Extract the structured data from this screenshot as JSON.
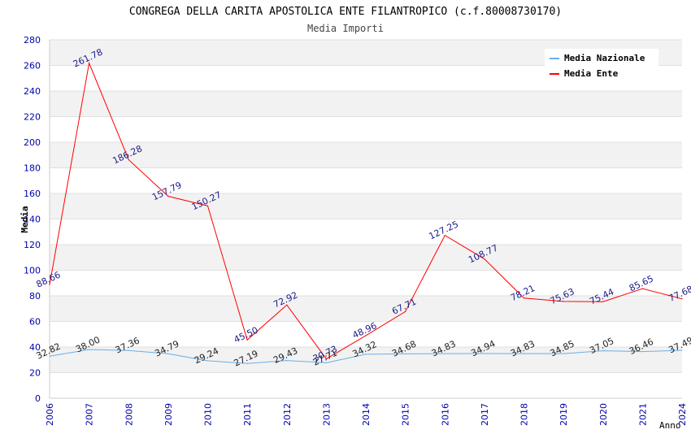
{
  "chart_data": {
    "type": "line",
    "title": "CONGREGA DELLA CARITA APOSTOLICA ENTE FILANTROPICO (c.f.80008730170)",
    "subtitle": "Media Importi",
    "xlabel": "Anno",
    "ylabel": "Media",
    "ylim": [
      0,
      280
    ],
    "yticks": [
      0,
      20,
      40,
      60,
      80,
      100,
      120,
      140,
      160,
      180,
      200,
      220,
      240,
      260,
      280
    ],
    "categories": [
      "2006",
      "2007",
      "2008",
      "2009",
      "2010",
      "2011",
      "2012",
      "2013",
      "2014",
      "2015",
      "2016",
      "2017",
      "2018",
      "2019",
      "2020",
      "2021",
      "2024"
    ],
    "series": [
      {
        "name": "Media Nazionale",
        "color": "#6aaee8",
        "values": [
          32.82,
          38.0,
          37.36,
          34.79,
          29.24,
          27.19,
          29.43,
          27.71,
          34.32,
          34.68,
          34.83,
          34.94,
          34.83,
          34.85,
          37.05,
          36.46,
          37.49
        ],
        "labels": [
          "32.82",
          "38.00",
          "37.36",
          "34.79",
          "29.24",
          "27.19",
          "29.43",
          "27.71",
          "34.32",
          "34.68",
          "34.83",
          "34.94",
          "34.83",
          "34.85",
          "37.05",
          "36.46",
          "37.49"
        ]
      },
      {
        "name": "Media Ente",
        "color": "#ff0000",
        "values": [
          88.66,
          261.78,
          186.28,
          157.79,
          150.27,
          45.5,
          72.92,
          30.73,
          48.96,
          67.71,
          127.25,
          108.77,
          78.21,
          75.63,
          75.44,
          85.65,
          77.68
        ],
        "labels": [
          "88.66",
          "261.78",
          "186.28",
          "157.79",
          "150.27",
          "45.50",
          "72.92",
          "30.73",
          "48.96",
          "67.71",
          "127.25",
          "108.77",
          "78.21",
          "75.63",
          "75.44",
          "85.65",
          "77.68"
        ]
      }
    ],
    "legend": "top-right",
    "grid": true
  }
}
